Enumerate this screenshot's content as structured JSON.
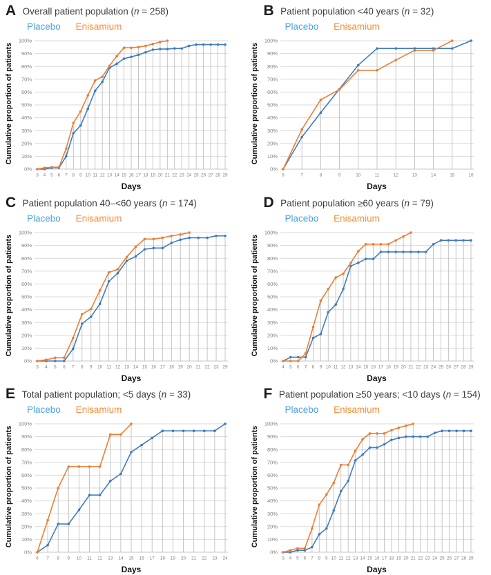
{
  "figure": {
    "legend": {
      "placebo": "Placebo",
      "enisamium": "Enisamium"
    },
    "axes": {
      "y_label": "Cumulative proportion of patients",
      "x_label": "Days"
    },
    "colors": {
      "placebo_line": "#3E7CC1",
      "enisamium_line": "#ED7D31",
      "placebo_legend": "#4BA3DE",
      "enisamium_legend": "#F68C35",
      "grid_line": "#D9D9D9",
      "axis_line": "#C6C6C6",
      "drop_line": "#BFBFBF",
      "tick_text": "#7F7F7F"
    }
  },
  "panels": [
    {
      "letter": "A",
      "title_pre": "Overall patient population (",
      "n_sym": "n",
      "title_post": " = 258)"
    },
    {
      "letter": "B",
      "title_pre": "Patient population <40 years (",
      "n_sym": "n",
      "title_post": " = 32)"
    },
    {
      "letter": "C",
      "title_pre": "Patient population 40–<60 years (",
      "n_sym": "n",
      "title_post": " = 174)"
    },
    {
      "letter": "D",
      "title_pre": "Patient population ≥60 years (",
      "n_sym": "n",
      "title_post": " = 79)"
    },
    {
      "letter": "E",
      "title_pre": "Total patient population; <5 days (",
      "n_sym": "n",
      "title_post": " = 33)"
    },
    {
      "letter": "F",
      "title_pre": "Patient population ≥50 years; <10 days (",
      "n_sym": "n",
      "title_post": " = 154)"
    }
  ],
  "chart_data": [
    {
      "panel": "A",
      "type": "line",
      "title": "Overall patient population (n = 258)",
      "xlabel": "Days",
      "ylabel": "Cumulative proportion of patients",
      "ylim": [
        0,
        100
      ],
      "y_tick_step": 10,
      "y_tick_suffix": "%",
      "grid": true,
      "legend_position": "top-left",
      "categories": [
        3,
        4,
        5,
        6,
        7,
        8,
        9,
        10,
        11,
        12,
        13,
        14,
        15,
        16,
        17,
        18,
        19,
        20,
        21,
        22,
        23,
        24,
        25,
        26,
        27,
        28,
        29
      ],
      "series": [
        {
          "name": "Placebo",
          "values": [
            0,
            0,
            1,
            1,
            10,
            28,
            34,
            47,
            61,
            68,
            79,
            82,
            86,
            87.5,
            89,
            91,
            93,
            93.5,
            93.5,
            94,
            94,
            96,
            97,
            97,
            97,
            97,
            97
          ]
        },
        {
          "name": "Enisamium",
          "values": [
            0,
            1,
            1.5,
            1.5,
            16,
            36,
            45,
            57.5,
            69,
            72,
            80.5,
            88,
            94.5,
            94.5,
            95,
            96,
            97.5,
            99,
            100,
            null,
            null,
            null,
            null,
            null,
            null,
            null,
            null
          ]
        }
      ]
    },
    {
      "panel": "B",
      "type": "line",
      "title": "Patient population <40 years (n = 32)",
      "xlabel": "Days",
      "ylabel": "Cumulative proportion of patients",
      "ylim": [
        0,
        100
      ],
      "y_tick_step": 10,
      "y_tick_suffix": "%",
      "grid": true,
      "legend_position": "top-left",
      "categories": [
        6,
        7,
        8,
        9,
        10,
        11,
        12,
        13,
        14,
        15,
        16
      ],
      "series": [
        {
          "name": "Placebo",
          "values": [
            0,
            25,
            44,
            62.5,
            81,
            94,
            94,
            94,
            94,
            94,
            100
          ]
        },
        {
          "name": "Enisamium",
          "values": [
            0,
            31,
            54,
            62,
            77,
            77,
            85,
            92.5,
            92.5,
            100,
            null
          ]
        }
      ]
    },
    {
      "panel": "C",
      "type": "line",
      "title": "Patient population 40–<60 years (n = 174)",
      "xlabel": "Days",
      "ylabel": "Cumulative proportion of patients",
      "ylim": [
        0,
        100
      ],
      "y_tick_step": 10,
      "y_tick_suffix": "%",
      "grid": true,
      "legend_position": "top-left",
      "categories": [
        3,
        4,
        5,
        6,
        7,
        8,
        9,
        10,
        11,
        12,
        13,
        14,
        15,
        16,
        17,
        18,
        19,
        20,
        21,
        22,
        23,
        29
      ],
      "series": [
        {
          "name": "Placebo",
          "values": [
            0,
            0,
            0,
            0,
            9.5,
            29,
            34.5,
            44.5,
            62,
            68.5,
            78,
            81.5,
            87,
            88,
            88,
            92,
            94.5,
            96,
            96,
            96,
            97.5,
            97.5
          ]
        },
        {
          "name": "Enisamium",
          "values": [
            0,
            1,
            2.5,
            2.5,
            18,
            36.5,
            40.5,
            55,
            69,
            71.5,
            81,
            89,
            95,
            95,
            96,
            97.5,
            98.5,
            100,
            null,
            null,
            null,
            null
          ]
        }
      ]
    },
    {
      "panel": "D",
      "type": "line",
      "title": "Patient population ≥60 years (n = 79)",
      "xlabel": "Days",
      "ylabel": "Cumulative proportion of patients",
      "ylim": [
        0,
        100
      ],
      "y_tick_step": 10,
      "y_tick_suffix": "%",
      "grid": true,
      "legend_position": "top-left",
      "categories": [
        4,
        5,
        6,
        7,
        8,
        9,
        10,
        11,
        12,
        13,
        14,
        15,
        16,
        17,
        18,
        19,
        20,
        21,
        22,
        23,
        24,
        25,
        26,
        27,
        28,
        29
      ],
      "series": [
        {
          "name": "Placebo",
          "values": [
            0,
            3,
            3,
            3,
            18,
            21,
            38,
            44,
            56,
            74,
            76.5,
            79.5,
            79.5,
            85,
            85,
            85,
            85,
            85,
            85,
            85,
            91,
            94,
            94,
            94,
            94,
            94
          ]
        },
        {
          "name": "Enisamium",
          "values": [
            0,
            0,
            0,
            6,
            26.5,
            47,
            56,
            65,
            68,
            76.5,
            85.5,
            91,
            91,
            91,
            91,
            94,
            97,
            100,
            null,
            null,
            null,
            null,
            null,
            null,
            null,
            null
          ]
        }
      ]
    },
    {
      "panel": "E",
      "type": "line",
      "title": "Total patient population; <5 days (n = 33)",
      "xlabel": "Days",
      "ylabel": "Cumulative proportion of patients",
      "ylim": [
        0,
        100
      ],
      "y_tick_step": 10,
      "y_tick_suffix": "%",
      "grid": true,
      "legend_position": "top-left",
      "categories": [
        6,
        7,
        8,
        9,
        10,
        11,
        12,
        13,
        14,
        15,
        16,
        17,
        18,
        19,
        20,
        21,
        22,
        23,
        24
      ],
      "series": [
        {
          "name": "Placebo",
          "values": [
            0,
            5.5,
            22,
            22,
            33,
            44.5,
            44.5,
            55.5,
            61,
            78,
            83.5,
            89,
            94.5,
            94.5,
            94.5,
            94.5,
            94.5,
            94.5,
            100
          ]
        },
        {
          "name": "Enisamium",
          "values": [
            0,
            25,
            50,
            66.7,
            66.7,
            66.7,
            66.7,
            91.7,
            91.7,
            100,
            null,
            null,
            null,
            null,
            null,
            null,
            null,
            null,
            null
          ]
        }
      ]
    },
    {
      "panel": "F",
      "type": "line",
      "title": "Patient population ≥50 years; <10 days (n = 154)",
      "xlabel": "Days",
      "ylabel": "Cumulative proportion of patients",
      "ylim": [
        0,
        100
      ],
      "y_tick_step": 10,
      "y_tick_suffix": "%",
      "grid": true,
      "legend_position": "top-left",
      "categories": [
        3,
        4,
        5,
        6,
        7,
        8,
        9,
        10,
        11,
        12,
        13,
        14,
        15,
        16,
        17,
        18,
        19,
        20,
        21,
        22,
        23,
        24,
        25,
        26,
        27,
        28,
        29
      ],
      "series": [
        {
          "name": "Placebo",
          "values": [
            0,
            0,
            1.5,
            1.5,
            4,
            14,
            18.5,
            32.5,
            47.5,
            55.5,
            71.5,
            76,
            81.5,
            81.5,
            84,
            87.5,
            89,
            90,
            90,
            90,
            90,
            93,
            94.5,
            94.5,
            94.5,
            94.5,
            94.5
          ]
        },
        {
          "name": "Enisamium",
          "values": [
            0,
            1.5,
            3,
            3,
            18.5,
            37,
            45,
            54,
            68,
            68,
            79,
            88,
            92.5,
            92.5,
            92.5,
            95,
            97,
            98.5,
            100,
            null,
            null,
            null,
            null,
            null,
            null,
            null,
            null
          ]
        }
      ]
    }
  ]
}
